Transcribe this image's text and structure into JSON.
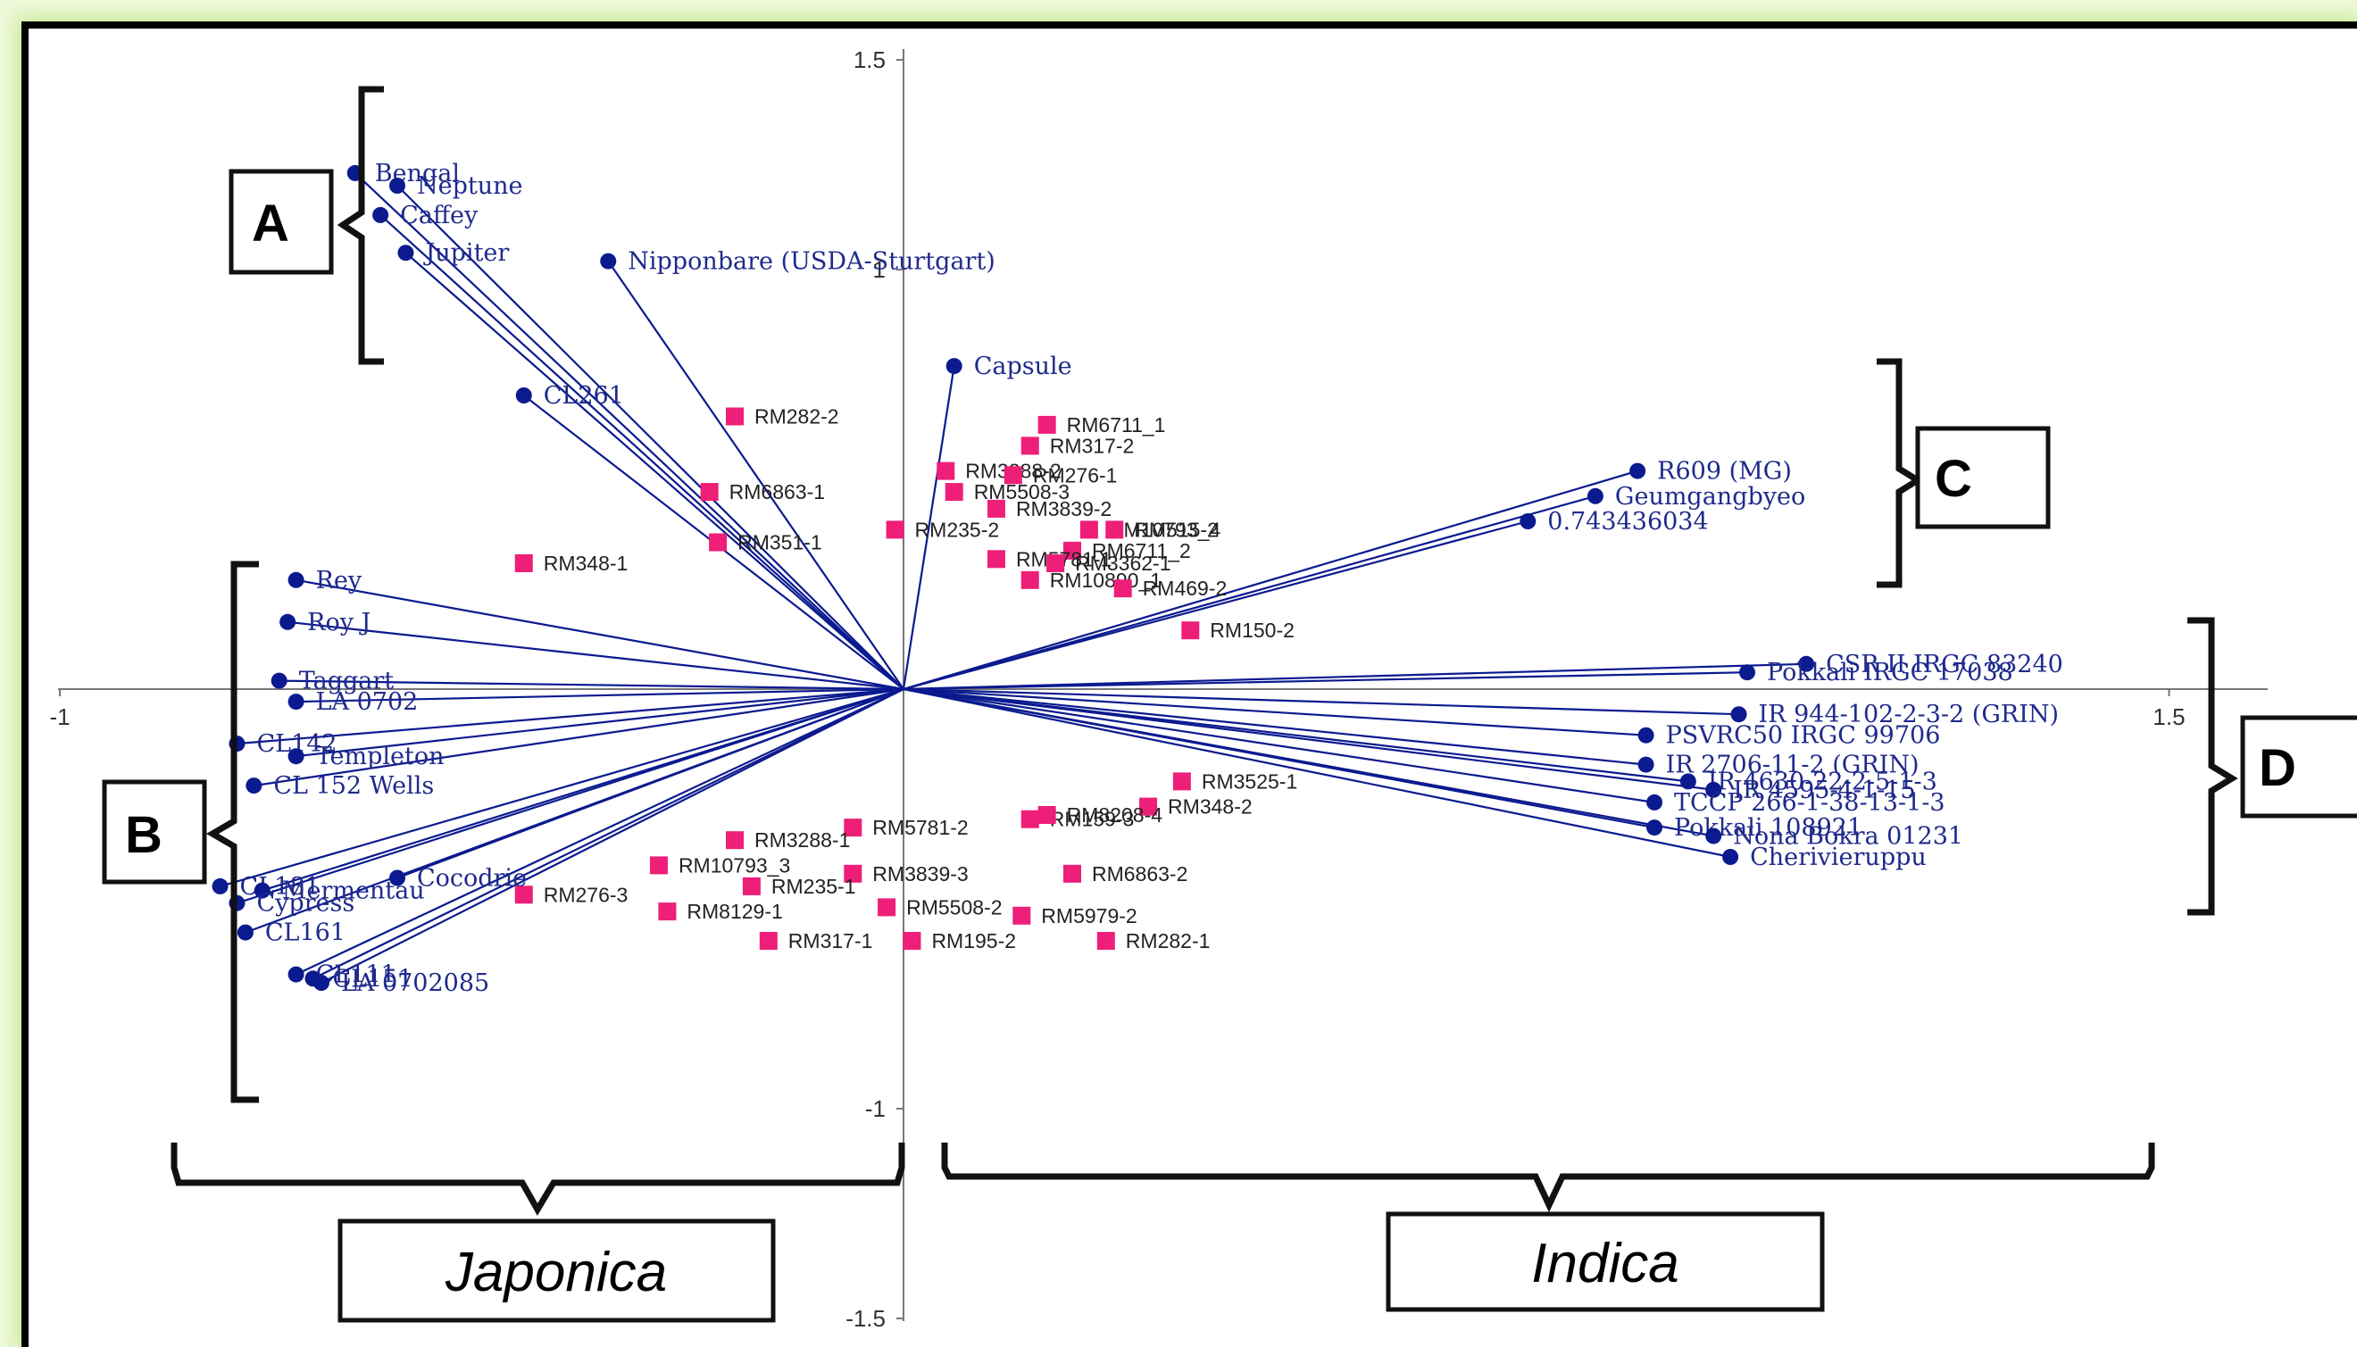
{
  "chart_data": {
    "type": "scatter",
    "title": "",
    "xlabel": "",
    "ylabel": "",
    "xlim": [
      -1,
      1.5
    ],
    "ylim": [
      -1.5,
      1.5
    ],
    "x_ticks": [
      "-1",
      "1.5"
    ],
    "y_ticks": [
      "1.5",
      "1",
      "-1",
      "-1.5"
    ],
    "grid": false,
    "legend": "none",
    "colors": {
      "genotype": "#0b1a8f",
      "marker": "#ee1f78",
      "bracket": "#111111"
    },
    "genotypes": [
      {
        "name": "Bengal",
        "x": -0.65,
        "y": 1.23
      },
      {
        "name": "Neptune",
        "x": -0.6,
        "y": 1.2
      },
      {
        "name": "Caffey",
        "x": -0.62,
        "y": 1.13
      },
      {
        "name": "Jupiter",
        "x": -0.59,
        "y": 1.04
      },
      {
        "name": "Nipponbare (USDA-Sturtgart)",
        "x": -0.35,
        "y": 1.02
      },
      {
        "name": "CL261",
        "x": -0.45,
        "y": 0.7
      },
      {
        "name": "Capsule",
        "x": 0.06,
        "y": 0.77
      },
      {
        "name": "R609 (MG)",
        "x": 0.87,
        "y": 0.52
      },
      {
        "name": "Geumgangbyeo",
        "x": 0.82,
        "y": 0.46
      },
      {
        "name": "0.743436034",
        "x": 0.74,
        "y": 0.4
      },
      {
        "name": "Rey",
        "x": -0.72,
        "y": 0.26
      },
      {
        "name": "Roy J",
        "x": -0.73,
        "y": 0.16
      },
      {
        "name": "Taggart",
        "x": -0.74,
        "y": 0.02
      },
      {
        "name": "LA 0702",
        "x": -0.72,
        "y": -0.03
      },
      {
        "name": "CL142",
        "x": -0.79,
        "y": -0.13
      },
      {
        "name": "Templeton",
        "x": -0.72,
        "y": -0.16
      },
      {
        "name": "CL 152 Wells",
        "x": -0.77,
        "y": -0.23
      },
      {
        "name": "Cocodrie",
        "x": -0.6,
        "y": -0.45
      },
      {
        "name": "CL181",
        "x": -0.81,
        "y": -0.47
      },
      {
        "name": "Mermentau",
        "x": -0.76,
        "y": -0.48
      },
      {
        "name": "Cypress",
        "x": -0.79,
        "y": -0.51
      },
      {
        "name": "CL161",
        "x": -0.78,
        "y": -0.58
      },
      {
        "name": "CL111",
        "x": -0.72,
        "y": -0.68
      },
      {
        "name": "CL151",
        "x": -0.7,
        "y": -0.69
      },
      {
        "name": "LA 0702085",
        "x": -0.69,
        "y": -0.7
      },
      {
        "name": "CSR II IRGC 83240",
        "x": 1.07,
        "y": 0.06
      },
      {
        "name": "Pokkali IRGC 17038",
        "x": 1.0,
        "y": 0.04
      },
      {
        "name": "IR 944-102-2-3-2 (GRIN)",
        "x": 0.99,
        "y": -0.06
      },
      {
        "name": "PSVRC50 IRGC 99706",
        "x": 0.88,
        "y": -0.11
      },
      {
        "name": "IR 2706-11-2 (GRIN)",
        "x": 0.88,
        "y": -0.18
      },
      {
        "name": "IR 4630-22-2-5-1-3",
        "x": 0.93,
        "y": -0.22
      },
      {
        "name": "IR 4595-4-1-15",
        "x": 0.96,
        "y": -0.24
      },
      {
        "name": "TCCP 266-1-38-13-1-3",
        "x": 0.89,
        "y": -0.27
      },
      {
        "name": "Pokkali 108921",
        "x": 0.89,
        "y": -0.33
      },
      {
        "name": "Nona Bokra 01231",
        "x": 0.96,
        "y": -0.35
      },
      {
        "name": "Cherivieruppu",
        "x": 0.98,
        "y": -0.4
      }
    ],
    "markers": [
      {
        "name": "RM282-2",
        "x": -0.2,
        "y": 0.65
      },
      {
        "name": "RM6711_1",
        "x": 0.17,
        "y": 0.63
      },
      {
        "name": "RM317-2",
        "x": 0.15,
        "y": 0.58
      },
      {
        "name": "RM3288-2",
        "x": 0.05,
        "y": 0.52
      },
      {
        "name": "RM276-1",
        "x": 0.13,
        "y": 0.51
      },
      {
        "name": "RM6863-1",
        "x": -0.23,
        "y": 0.47
      },
      {
        "name": "RM5508-3",
        "x": 0.06,
        "y": 0.47
      },
      {
        "name": "RM3839-2",
        "x": 0.11,
        "y": 0.43
      },
      {
        "name": "RM235-2",
        "x": -0.01,
        "y": 0.38
      },
      {
        "name": "RM10793_4",
        "x": 0.22,
        "y": 0.38
      },
      {
        "name": "RM515-2",
        "x": 0.25,
        "y": 0.38
      },
      {
        "name": "RM351-1",
        "x": -0.22,
        "y": 0.35
      },
      {
        "name": "RM6711_2",
        "x": 0.2,
        "y": 0.33
      },
      {
        "name": "RM348-1",
        "x": -0.45,
        "y": 0.3
      },
      {
        "name": "RM5781-1",
        "x": 0.11,
        "y": 0.31
      },
      {
        "name": "RM3362-1",
        "x": 0.18,
        "y": 0.3
      },
      {
        "name": "RM10890_1",
        "x": 0.15,
        "y": 0.26
      },
      {
        "name": "RM469-2",
        "x": 0.26,
        "y": 0.24
      },
      {
        "name": "RM150-2",
        "x": 0.34,
        "y": 0.14
      },
      {
        "name": "RM3525-1",
        "x": 0.33,
        "y": -0.22
      },
      {
        "name": "RM348-2",
        "x": 0.29,
        "y": -0.28
      },
      {
        "name": "RM5781-2",
        "x": -0.06,
        "y": -0.33
      },
      {
        "name": "RM159-3",
        "x": 0.15,
        "y": -0.31
      },
      {
        "name": "RM8208-4",
        "x": 0.17,
        "y": -0.3
      },
      {
        "name": "RM3288-1",
        "x": -0.2,
        "y": -0.36
      },
      {
        "name": "RM10793_3",
        "x": -0.29,
        "y": -0.42
      },
      {
        "name": "RM3839-3",
        "x": -0.06,
        "y": -0.44
      },
      {
        "name": "RM6863-2",
        "x": 0.2,
        "y": -0.44
      },
      {
        "name": "RM276-3",
        "x": -0.45,
        "y": -0.49
      },
      {
        "name": "RM235-1",
        "x": -0.18,
        "y": -0.47
      },
      {
        "name": "RM8129-1",
        "x": -0.28,
        "y": -0.53
      },
      {
        "name": "RM5508-2",
        "x": -0.02,
        "y": -0.52
      },
      {
        "name": "RM5979-2",
        "x": 0.14,
        "y": -0.54
      },
      {
        "name": "RM317-1",
        "x": -0.16,
        "y": -0.6
      },
      {
        "name": "RM195-2",
        "x": 0.01,
        "y": -0.6
      },
      {
        "name": "RM282-1",
        "x": 0.24,
        "y": -0.6
      }
    ]
  },
  "annotations": {
    "A": "A",
    "B": "B",
    "C": "C",
    "D": "D",
    "japonica": "Japonica",
    "indica": "Indica"
  }
}
